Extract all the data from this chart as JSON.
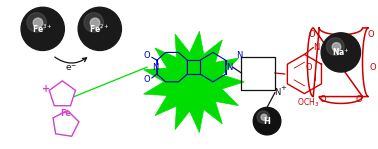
{
  "bg_color": "#ffffff",
  "green_color": "#00dd00",
  "blue_color": "#0000bb",
  "red_color": "#cc0000",
  "purple_color": "#cc44cc",
  "black_color": "#111111",
  "sphere_dark": "#1a1a1a",
  "fe3_label": "Fe$^{3+}$",
  "fe2_label": "Fe$^{2+}$",
  "na_label": "Na$^{+}$",
  "h_label": "H",
  "e_label": "e$^{-}$",
  "fe_label": "Fe",
  "o_label": "O",
  "n_label": "N",
  "och3_label": "OCH$_3$"
}
